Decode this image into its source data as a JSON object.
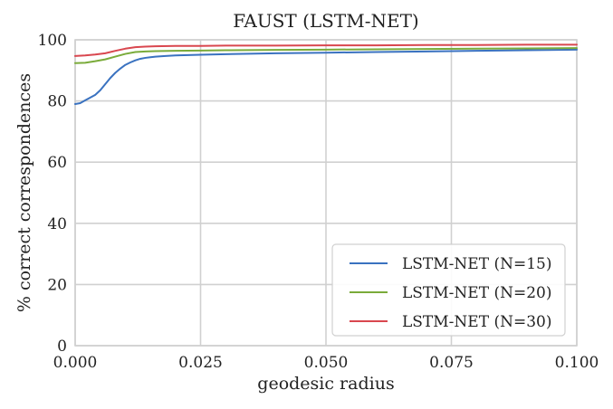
{
  "chart_data": {
    "type": "line",
    "title": "FAUST (LSTM-NET)",
    "xlabel": "geodesic radius",
    "ylabel": "% correct correspondences",
    "xlim": [
      0,
      0.1
    ],
    "ylim": [
      0,
      100
    ],
    "x_ticks": [
      "0.000",
      "0.025",
      "0.050",
      "0.075",
      "0.100"
    ],
    "x_tick_values": [
      0,
      0.025,
      0.05,
      0.075,
      0.1
    ],
    "y_ticks": [
      "0",
      "20",
      "40",
      "60",
      "80",
      "100"
    ],
    "y_tick_values": [
      0,
      20,
      40,
      60,
      80,
      100
    ],
    "grid": true,
    "legend_position": "lower-right",
    "series": [
      {
        "name": "LSTM-NET (N=15)",
        "color": "#3a72c0",
        "x": [
          0,
          0.001,
          0.002,
          0.003,
          0.004,
          0.005,
          0.006,
          0.007,
          0.008,
          0.009,
          0.01,
          0.011,
          0.012,
          0.013,
          0.014,
          0.015,
          0.016,
          0.018,
          0.02,
          0.025,
          0.03,
          0.04,
          0.05,
          0.06,
          0.07,
          0.08,
          0.09,
          0.1
        ],
        "y": [
          79.0,
          79.3,
          80.2,
          81.1,
          82.0,
          83.5,
          85.5,
          87.5,
          89.2,
          90.6,
          91.8,
          92.6,
          93.3,
          93.8,
          94.1,
          94.3,
          94.5,
          94.7,
          94.9,
          95.1,
          95.3,
          95.6,
          95.8,
          96.0,
          96.2,
          96.4,
          96.6,
          96.8
        ]
      },
      {
        "name": "LSTM-NET (N=20)",
        "color": "#7aab3a",
        "x": [
          0,
          0.002,
          0.004,
          0.006,
          0.008,
          0.01,
          0.012,
          0.014,
          0.016,
          0.02,
          0.025,
          0.03,
          0.04,
          0.05,
          0.06,
          0.07,
          0.08,
          0.09,
          0.1
        ],
        "y": [
          92.4,
          92.5,
          93.0,
          93.6,
          94.5,
          95.4,
          96.0,
          96.2,
          96.3,
          96.4,
          96.5,
          96.6,
          96.7,
          96.8,
          96.9,
          97.0,
          97.1,
          97.2,
          97.3
        ]
      },
      {
        "name": "LSTM-NET (N=30)",
        "color": "#d9474f",
        "x": [
          0,
          0.002,
          0.004,
          0.006,
          0.008,
          0.01,
          0.012,
          0.014,
          0.016,
          0.02,
          0.025,
          0.03,
          0.04,
          0.05,
          0.06,
          0.07,
          0.08,
          0.09,
          0.1
        ],
        "y": [
          94.7,
          94.9,
          95.2,
          95.6,
          96.4,
          97.1,
          97.6,
          97.8,
          97.9,
          98.0,
          98.0,
          98.1,
          98.1,
          98.2,
          98.2,
          98.3,
          98.3,
          98.4,
          98.4
        ]
      }
    ]
  }
}
